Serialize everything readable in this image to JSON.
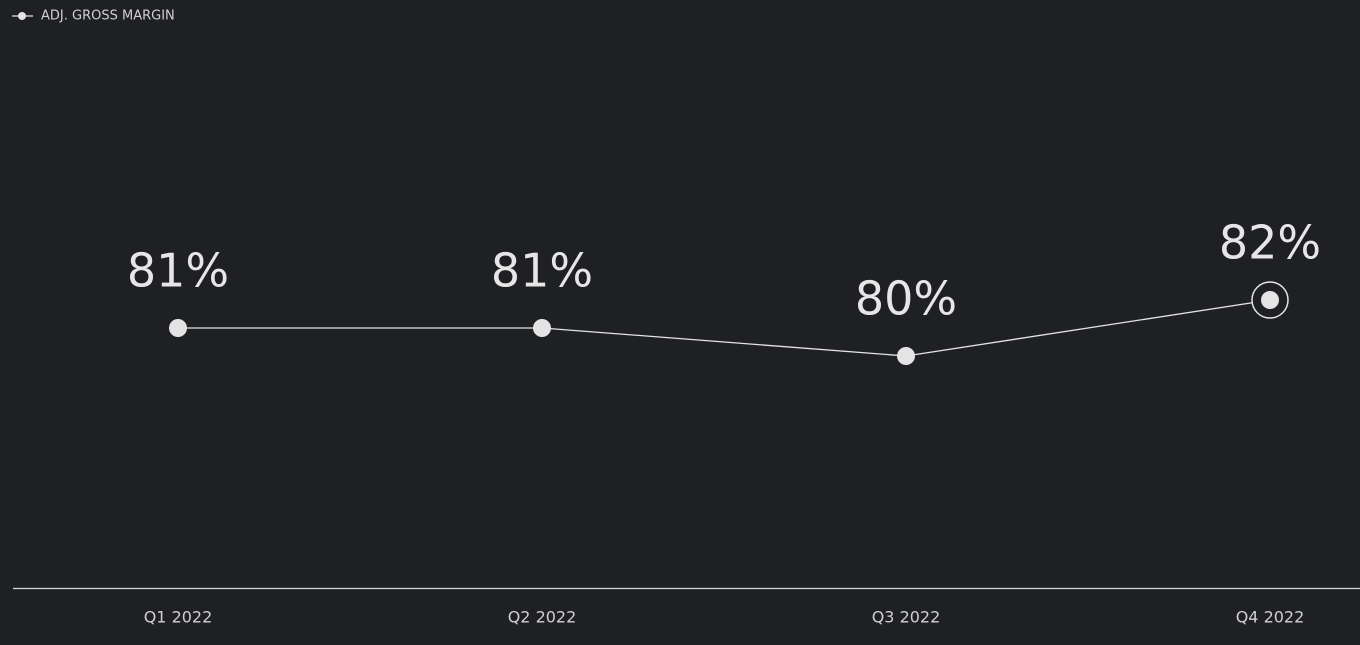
{
  "chart_data": {
    "type": "line",
    "categories": [
      "Q1 2022",
      "Q2 2022",
      "Q3 2022",
      "Q4 2022"
    ],
    "series": [
      {
        "name": "ADJ. GROSS MARGIN",
        "color": "#e4e4e4",
        "values": [
          81,
          81,
          80,
          82
        ],
        "value_labels": [
          "81%",
          "81%",
          "80%",
          "82%"
        ]
      }
    ],
    "legend": "top-left"
  }
}
